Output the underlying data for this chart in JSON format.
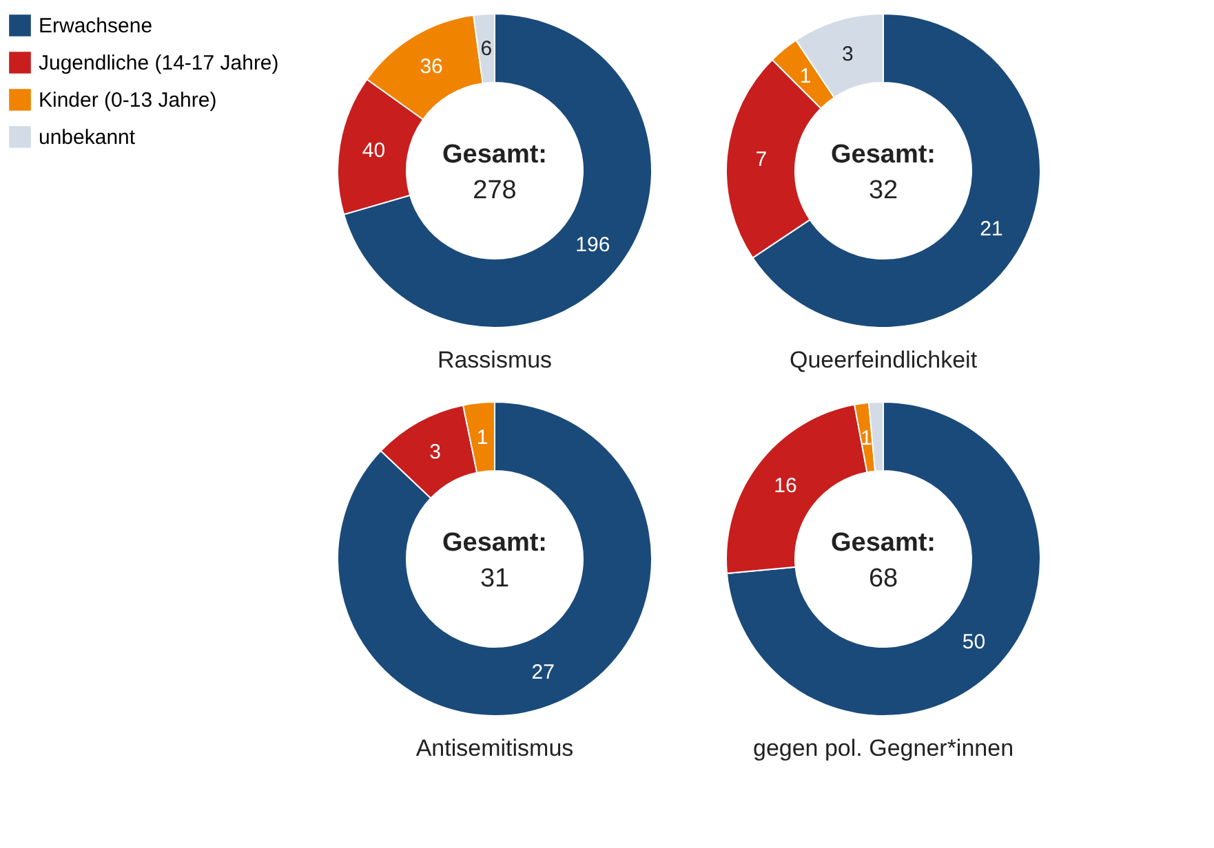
{
  "chart_data": [
    {
      "type": "donut",
      "title": "Rassismus",
      "legend": "left",
      "categories": [
        "Erwachsene",
        "Jugendliche (14-17 Jahre)",
        "Kinder (0-13 Jahre)",
        "unbekannt"
      ],
      "values": [
        196,
        40,
        36,
        6
      ],
      "colors": [
        "#1a4a7a",
        "#c81e1e",
        "#f08300",
        "#d3dbe6"
      ],
      "value_labels": [
        "196",
        "40",
        "36",
        "6"
      ],
      "annotations": [
        "Gesamt:",
        "278"
      ]
    },
    {
      "type": "donut",
      "title": "Queerfeindlichkeit",
      "categories": [
        null,
        null,
        null,
        null
      ],
      "values": [
        21,
        7,
        1,
        3
      ],
      "colors": [
        "#1a4a7a",
        "#c81e1e",
        "#f08300",
        "#d3dbe6"
      ],
      "value_labels": [
        "21",
        "7",
        "1",
        "3"
      ],
      "annotations": [
        "Gesamt:",
        "32"
      ]
    },
    {
      "type": "donut",
      "title": "Antisemitismus",
      "categories": [
        null,
        null,
        null
      ],
      "values": [
        27,
        3,
        1
      ],
      "colors": [
        "#1a4a7a",
        "#c81e1e",
        "#f08300"
      ],
      "value_labels": [
        "27",
        "3",
        "1"
      ],
      "annotations": [
        "Gesamt:",
        "31"
      ]
    },
    {
      "type": "donut",
      "title": "gegen pol. Gegner*innen",
      "categories": [
        null,
        null,
        null,
        null
      ],
      "values": [
        50,
        16,
        1,
        1
      ],
      "colors": [
        "#1a4a7a",
        "#c81e1e",
        "#f08300",
        "#d3dbe6"
      ],
      "value_labels": [
        "50",
        "16",
        "1",
        null
      ],
      "annotations": [
        "Gesamt:",
        "68"
      ]
    }
  ]
}
